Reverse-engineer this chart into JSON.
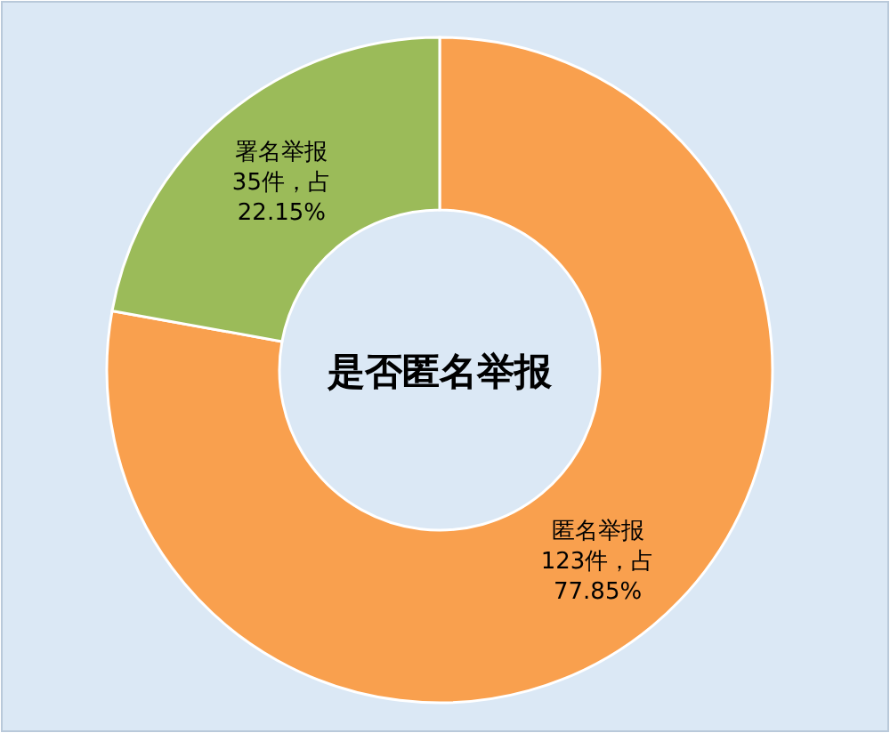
{
  "chart_data": {
    "type": "donut",
    "title": "是否匿名举报",
    "categories": [
      "匿名举报",
      "署名举报"
    ],
    "values": [
      123,
      35
    ],
    "colors": [
      "#f9a04e",
      "#9bbb59"
    ],
    "value_labels": [
      "123件，占\n77.85%",
      "35件，占\n22.15%"
    ]
  }
}
